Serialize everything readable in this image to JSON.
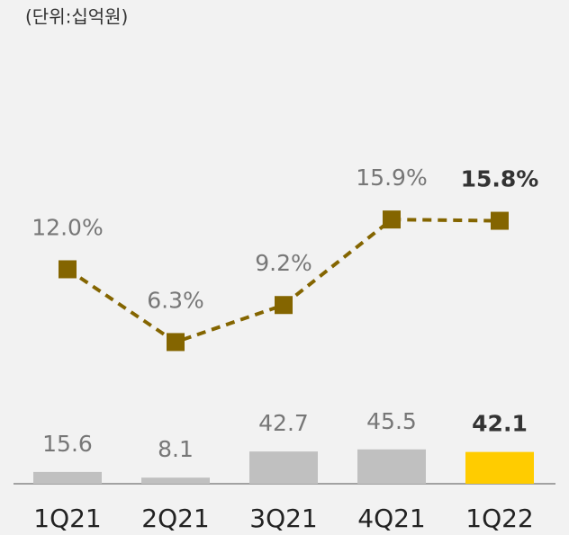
{
  "chart_data": {
    "type": "bar_line",
    "subtitle": "(단위:십억원)",
    "categories": [
      "1Q21",
      "2Q21",
      "3Q21",
      "4Q21",
      "1Q22"
    ],
    "series": [
      {
        "type": "bar",
        "values": [
          15.6,
          8.1,
          42.7,
          45.5,
          42.1
        ],
        "colors": [
          "#c0c0c0",
          "#c0c0c0",
          "#c0c0c0",
          "#c0c0c0",
          "#ffcc00"
        ]
      },
      {
        "type": "line",
        "axis": "y2",
        "color": "#846500",
        "values": [
          12.0,
          6.3,
          9.2,
          15.9,
          15.8
        ],
        "value_labels": [
          "12.0%",
          "6.3%",
          "9.2%",
          "15.9%",
          "15.8%"
        ]
      }
    ],
    "ylim": [
      0,
      600
    ],
    "y2lim": [
      -4.8,
      30.7
    ]
  }
}
